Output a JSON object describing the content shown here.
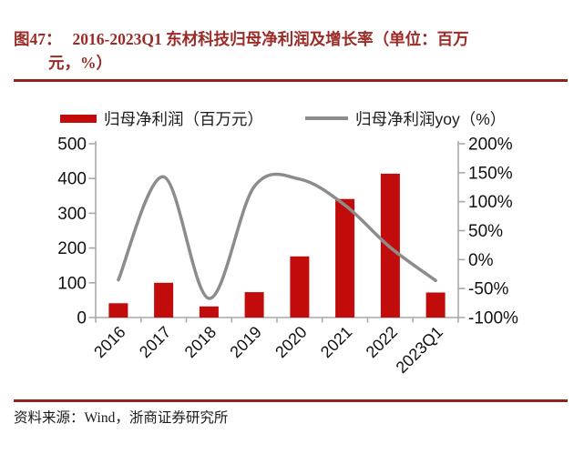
{
  "figure": {
    "prefix": "图47：",
    "title_line1": "2016-2023Q1 东材科技归母净利润及增长率（单位：百万",
    "title_line2": "元，%）"
  },
  "chart_data": {
    "type": "bar",
    "subtype": "combo-bar-line-dual-axis",
    "categories": [
      "2016",
      "2017",
      "2018",
      "2019",
      "2020",
      "2021",
      "2022",
      "2023Q1"
    ],
    "series": [
      {
        "name": "归母净利润（百万元）",
        "type": "bar",
        "axis": "left",
        "values": [
          41,
          100,
          32,
          73,
          176,
          341,
          414,
          72
        ]
      },
      {
        "name": "归母净利润yoy（%）",
        "type": "line",
        "axis": "right",
        "values": [
          -35,
          143,
          -67,
          126,
          139,
          94,
          21,
          -36
        ]
      }
    ],
    "left_axis": {
      "min": 0,
      "max": 500,
      "tick_labels": [
        "0",
        "100",
        "200",
        "300",
        "400",
        "500"
      ]
    },
    "right_axis": {
      "min": -100,
      "max": 200,
      "tick_labels": [
        "-100%",
        "-50%",
        "0%",
        "50%",
        "100%",
        "150%",
        "200%"
      ]
    },
    "legend_position": "top",
    "grid": false,
    "line_style": "smooth"
  },
  "source": {
    "text": "资料来源：Wind，浙商证券研究所"
  },
  "colors": {
    "accent_red": "#9b2b26",
    "rule_red": "#8e2420",
    "bar_red": "#c20b0b",
    "line_gray": "#8c8c8c",
    "axis_gray": "#a9a9a9",
    "text_black": "#1a1a1a"
  }
}
